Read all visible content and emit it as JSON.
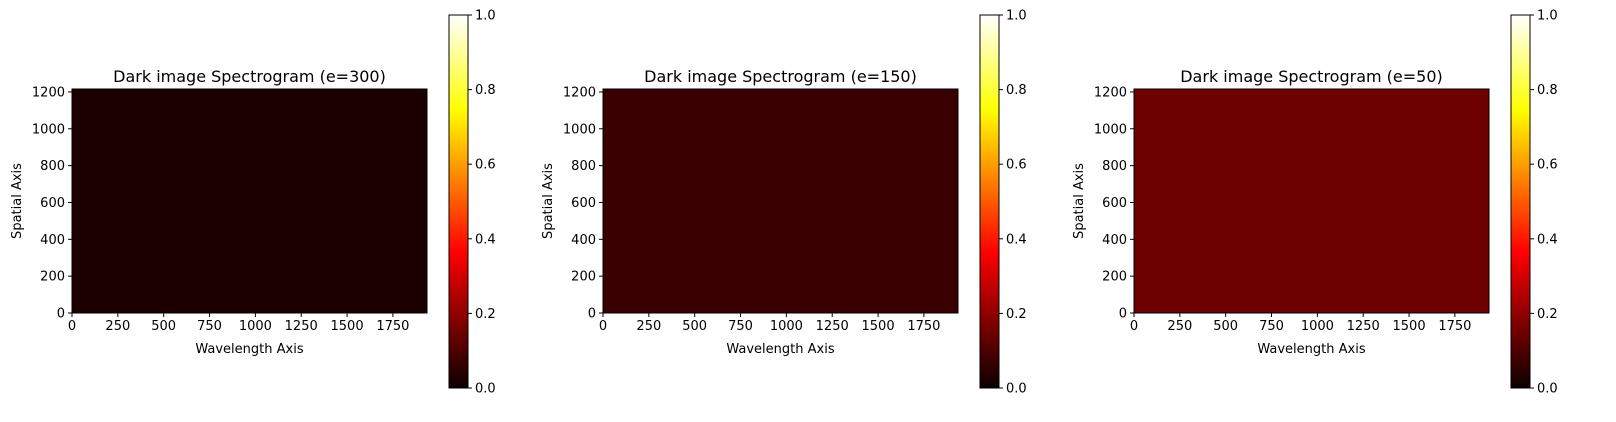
{
  "colormap": "hot",
  "chart_data": [
    {
      "type": "heatmap",
      "title": "Dark image Spectrogram (e=300)",
      "xlabel": "Wavelength Axis",
      "ylabel": "Spatial Axis",
      "xlim": [
        0,
        1936
      ],
      "ylim": [
        0,
        1216
      ],
      "xticks": [
        "0",
        "250",
        "500",
        "750",
        "1000",
        "1250",
        "1500",
        "1750"
      ],
      "yticks": [
        "0",
        "200",
        "400",
        "600",
        "800",
        "1000",
        "1200"
      ],
      "value": 0.07,
      "fill_color": "#1c0000",
      "colorbar": {
        "range": [
          0,
          1
        ],
        "ticks": [
          "0.0",
          "0.2",
          "0.4",
          "0.6",
          "0.8",
          "1.0"
        ]
      }
    },
    {
      "type": "heatmap",
      "title": "Dark image Spectrogram (e=150)",
      "xlabel": "Wavelength Axis",
      "ylabel": "Spatial Axis",
      "xlim": [
        0,
        1936
      ],
      "ylim": [
        0,
        1216
      ],
      "xticks": [
        "0",
        "250",
        "500",
        "750",
        "1000",
        "1250",
        "1500",
        "1750"
      ],
      "yticks": [
        "0",
        "200",
        "400",
        "600",
        "800",
        "1000",
        "1200"
      ],
      "value": 0.14,
      "fill_color": "#380000",
      "colorbar": {
        "range": [
          0,
          1
        ],
        "ticks": [
          "0.0",
          "0.2",
          "0.4",
          "0.6",
          "0.8",
          "1.0"
        ]
      }
    },
    {
      "type": "heatmap",
      "title": "Dark image Spectrogram (e=50)",
      "xlabel": "Wavelength Axis",
      "ylabel": "Spatial Axis",
      "xlim": [
        0,
        1936
      ],
      "ylim": [
        0,
        1216
      ],
      "xticks": [
        "0",
        "250",
        "500",
        "750",
        "1000",
        "1250",
        "1500",
        "1750"
      ],
      "yticks": [
        "0",
        "200",
        "400",
        "600",
        "800",
        "1000",
        "1200"
      ],
      "value": 0.27,
      "fill_color": "#6d0000",
      "colorbar": {
        "range": [
          0,
          1
        ],
        "ticks": [
          "0.0",
          "0.2",
          "0.4",
          "0.6",
          "0.8",
          "1.0"
        ]
      }
    }
  ]
}
